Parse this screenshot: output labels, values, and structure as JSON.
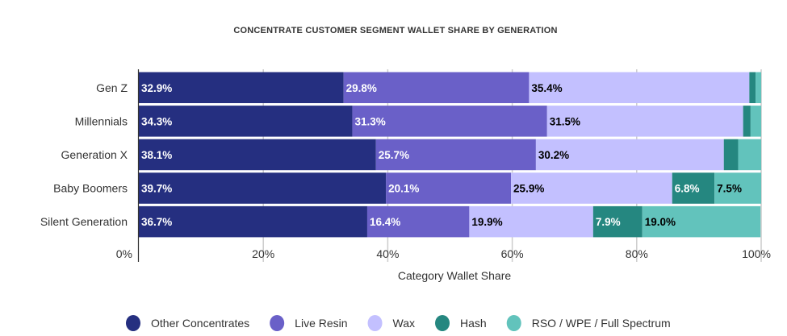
{
  "chart_data": {
    "type": "bar",
    "orientation": "horizontal",
    "stacked": true,
    "title": "CONCENTRATE CUSTOMER SEGMENT WALLET SHARE BY GENERATION",
    "xlabel": "Category Wallet Share",
    "ylabel": "",
    "xlim": [
      0,
      100
    ],
    "xticks": [
      "0%",
      "20%",
      "40%",
      "60%",
      "80%",
      "100%"
    ],
    "grid": true,
    "legend_position": "bottom",
    "categories": [
      "Gen Z",
      "Millennials",
      "Generation X",
      "Baby Boomers",
      "Silent Generation"
    ],
    "series": [
      {
        "name": "Other Concentrates",
        "color": "#252f80",
        "label_color": "#ffffff",
        "values": [
          32.9,
          34.3,
          38.1,
          39.7,
          36.7
        ]
      },
      {
        "name": "Live Resin",
        "color": "#6a60c8",
        "label_color": "#ffffff",
        "values": [
          29.8,
          31.3,
          25.7,
          20.1,
          16.4
        ]
      },
      {
        "name": "Wax",
        "color": "#c3c0ff",
        "label_color": "#000000",
        "values": [
          35.4,
          31.5,
          30.2,
          25.9,
          19.9
        ]
      },
      {
        "name": "Hash",
        "color": "#258780",
        "label_color": "#ffffff",
        "values": [
          1.0,
          1.2,
          2.3,
          6.8,
          7.9
        ]
      },
      {
        "name": "RSO / WPE / Full Spectrum",
        "color": "#62c3bc",
        "label_color": "#000000",
        "values": [
          0.9,
          1.7,
          3.7,
          7.5,
          19.0
        ]
      }
    ],
    "label_threshold": 5
  }
}
